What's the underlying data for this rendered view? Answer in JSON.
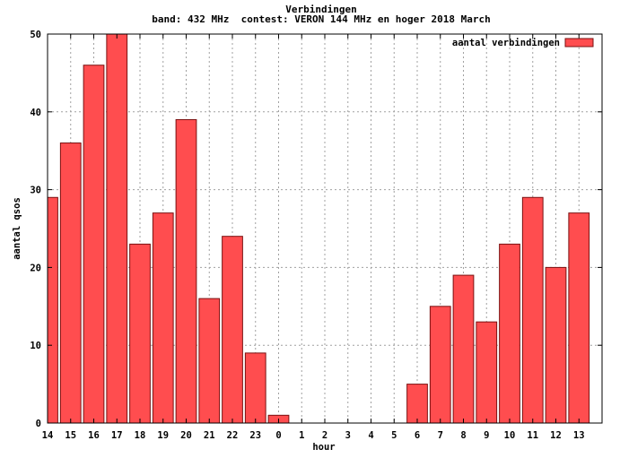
{
  "chart_data": {
    "type": "bar",
    "title": "Verbindingen",
    "subtitle": "band: 432 MHz  contest: VERON 144 MHz en hoger 2018 March",
    "xlabel": "hour",
    "ylabel": "aantal qsos",
    "ylim": [
      0,
      50
    ],
    "yticks": [
      0,
      10,
      20,
      30,
      40,
      50
    ],
    "grid": true,
    "legend_position": "top-right",
    "categories": [
      "14",
      "15",
      "16",
      "17",
      "18",
      "19",
      "20",
      "21",
      "22",
      "23",
      "0",
      "1",
      "2",
      "3",
      "4",
      "5",
      "6",
      "7",
      "8",
      "9",
      "10",
      "11",
      "12",
      "13"
    ],
    "series": [
      {
        "name": "aantal verbindingen",
        "color": "#ff4d4f",
        "values": [
          29,
          36,
          46,
          50,
          23,
          27,
          39,
          16,
          24,
          9,
          1,
          0,
          0,
          0,
          0,
          0,
          5,
          15,
          19,
          13,
          23,
          29,
          20,
          27
        ]
      }
    ]
  }
}
